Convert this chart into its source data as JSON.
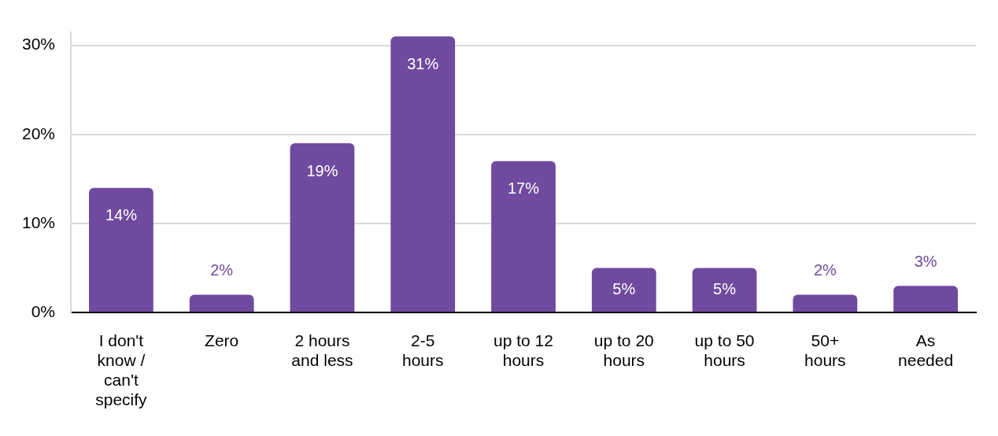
{
  "chart_data": {
    "type": "bar",
    "categories": [
      "I don't know / can't specify",
      "Zero",
      "2 hours and less",
      "2-5 hours",
      "up to 12 hours",
      "up to 20 hours",
      "up to 50 hours",
      "50+ hours",
      "As needed"
    ],
    "values": [
      14,
      2,
      19,
      31,
      17,
      5,
      5,
      2,
      3
    ],
    "value_labels": [
      "14%",
      "2%",
      "19%",
      "31%",
      "17%",
      "5%",
      "5%",
      "2%",
      "3%"
    ],
    "color": "#6f4a9e",
    "ylim": [
      0,
      31.5
    ],
    "yticks": [
      {
        "value": 0,
        "label": "0%"
      },
      {
        "value": 10,
        "label": "10%"
      },
      {
        "value": 20,
        "label": "20%"
      },
      {
        "value": 30,
        "label": "30%"
      }
    ],
    "grid": "y",
    "legend": false
  }
}
